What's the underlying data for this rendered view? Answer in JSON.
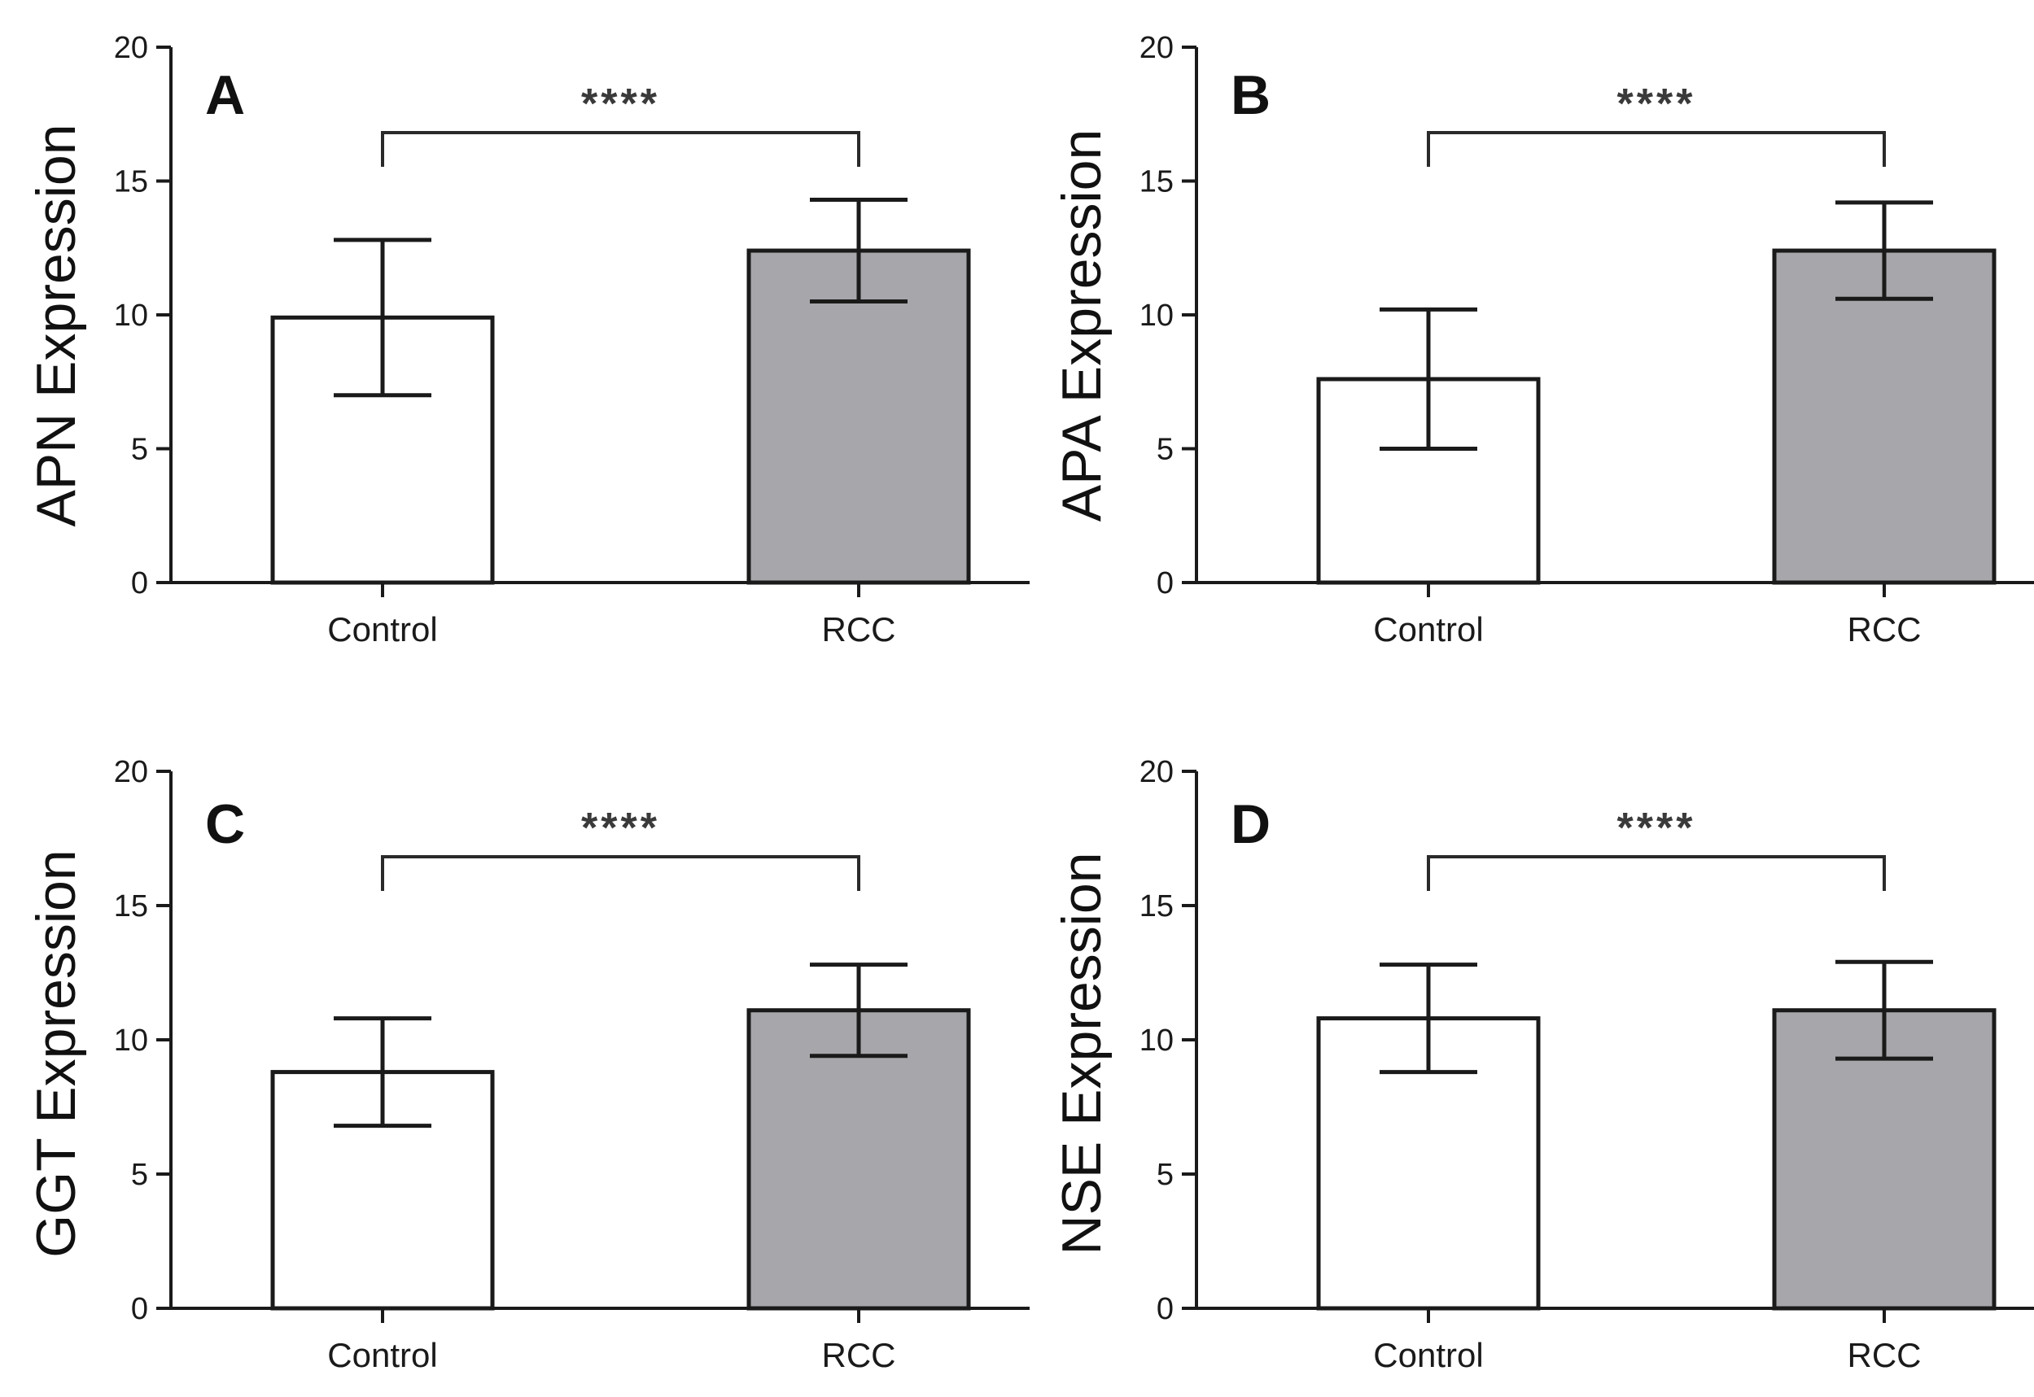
{
  "chart_data": [
    {
      "panel": "A",
      "type": "bar",
      "ylabel": "APN Expression",
      "categories": [
        "Control",
        "RCC"
      ],
      "values": [
        9.9,
        12.4
      ],
      "error": [
        2.9,
        1.9
      ],
      "bar_colors": [
        "#ffffff",
        "#a7a6ab"
      ],
      "ylim": [
        0,
        20
      ],
      "yticks": [
        0,
        5,
        10,
        15,
        20
      ],
      "significance": "****"
    },
    {
      "panel": "B",
      "type": "bar",
      "ylabel": "APA Expression",
      "categories": [
        "Control",
        "RCC"
      ],
      "values": [
        7.6,
        12.4
      ],
      "error": [
        2.6,
        1.8
      ],
      "bar_colors": [
        "#ffffff",
        "#a7a6ab"
      ],
      "ylim": [
        0,
        20
      ],
      "yticks": [
        0,
        5,
        10,
        15,
        20
      ],
      "significance": "****"
    },
    {
      "panel": "C",
      "type": "bar",
      "ylabel": "GGT Expression",
      "categories": [
        "Control",
        "RCC"
      ],
      "values": [
        8.8,
        11.1
      ],
      "error": [
        2.0,
        1.7
      ],
      "bar_colors": [
        "#ffffff",
        "#a7a6ab"
      ],
      "ylim": [
        0,
        20
      ],
      "yticks": [
        0,
        5,
        10,
        15,
        20
      ],
      "significance": "****"
    },
    {
      "panel": "D",
      "type": "bar",
      "ylabel": "NSE Expression",
      "categories": [
        "Control",
        "RCC"
      ],
      "values": [
        10.8,
        11.1
      ],
      "error": [
        2.0,
        1.8
      ],
      "bar_colors": [
        "#ffffff",
        "#a7a6ab"
      ],
      "ylim": [
        0,
        20
      ],
      "yticks": [
        0,
        5,
        10,
        15,
        20
      ],
      "significance": "****"
    }
  ]
}
